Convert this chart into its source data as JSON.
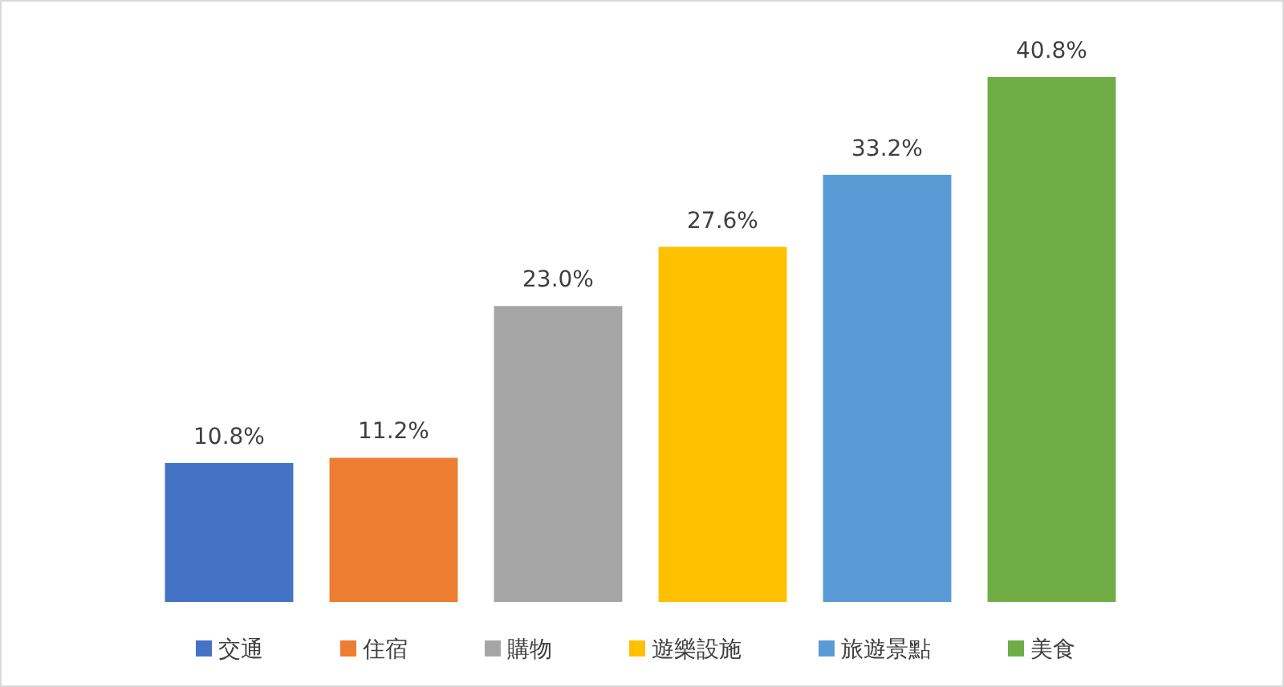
{
  "chart_data": {
    "type": "bar",
    "stacked": true,
    "categories": [
      null,
      null,
      null,
      null,
      null,
      null
    ],
    "series": [
      {
        "name": "交通",
        "color": "#4472c4",
        "values": [
          10.8,
          null,
          null,
          null,
          null,
          null
        ],
        "value_labels": [
          "10.8%",
          null,
          null,
          null,
          null,
          null
        ]
      },
      {
        "name": "住宿",
        "color": "#ed7d31",
        "values": [
          null,
          11.2,
          null,
          null,
          null,
          null
        ],
        "value_labels": [
          null,
          "11.2%",
          null,
          null,
          null,
          null
        ]
      },
      {
        "name": "購物",
        "color": "#a5a5a5",
        "values": [
          null,
          null,
          23.0,
          null,
          null,
          null
        ],
        "value_labels": [
          null,
          null,
          "23.0%",
          null,
          null,
          null
        ]
      },
      {
        "name": "遊樂設施",
        "color": "#ffc000",
        "values": [
          null,
          null,
          null,
          27.6,
          null,
          null
        ],
        "value_labels": [
          null,
          null,
          null,
          "27.6%",
          null,
          null
        ]
      },
      {
        "name": "旅遊景點",
        "color": "#5b9bd5",
        "values": [
          null,
          null,
          null,
          null,
          33.2,
          null
        ],
        "value_labels": [
          null,
          null,
          null,
          null,
          "33.2%",
          null
        ]
      },
      {
        "name": "美食",
        "color": "#70ad47",
        "values": [
          null,
          null,
          null,
          null,
          null,
          40.8
        ],
        "value_labels": [
          null,
          null,
          null,
          null,
          null,
          "40.8%"
        ]
      }
    ],
    "tick_labels": false,
    "legend": "bottom"
  }
}
